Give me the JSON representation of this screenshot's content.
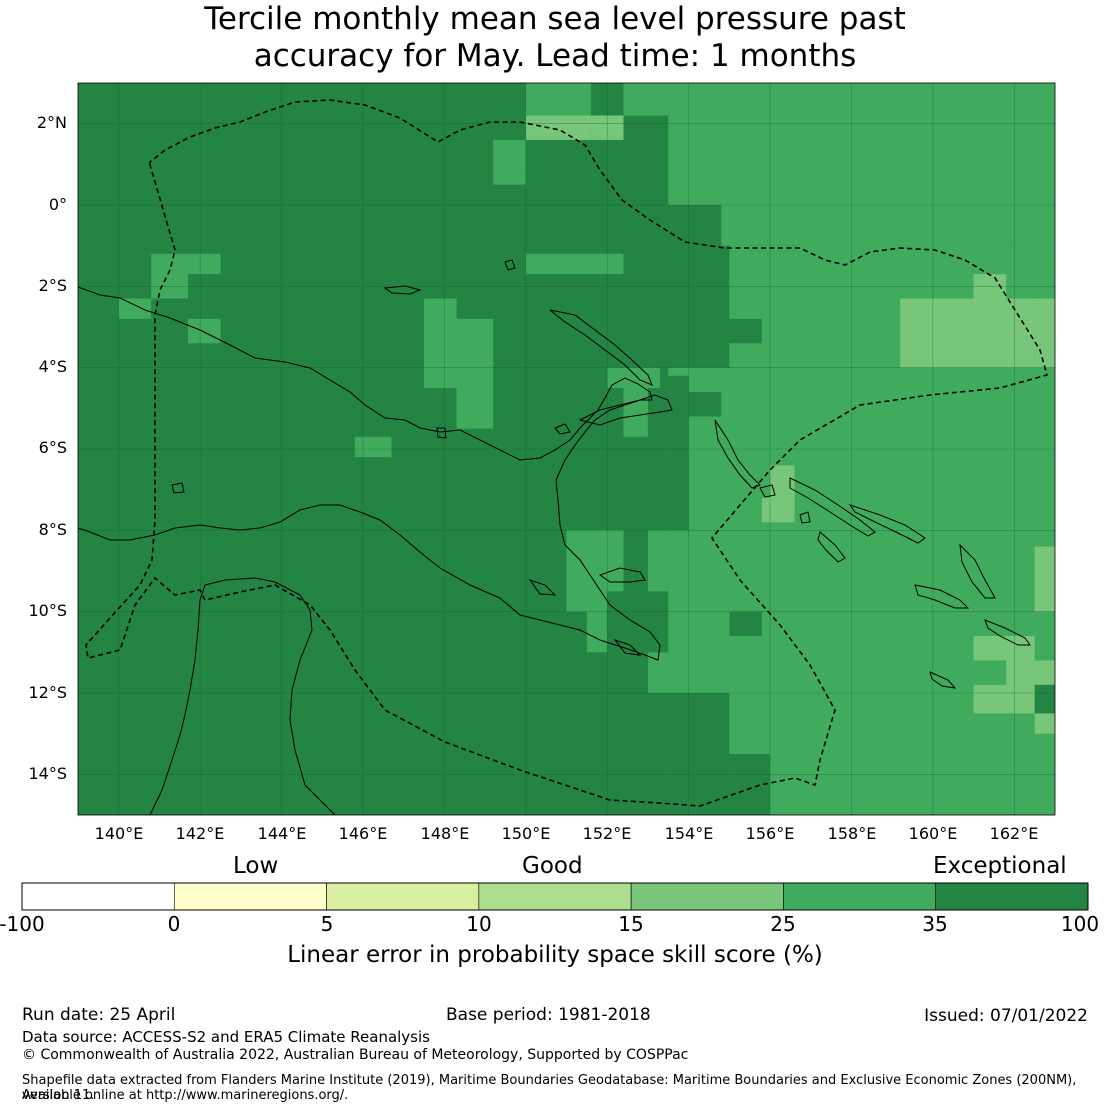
{
  "title": {
    "line1": "Tercile monthly mean sea level pressure past",
    "line2": "accuracy for May. Lead time: 1 months"
  },
  "map": {
    "lat_ticks": [
      "2°N",
      "0°",
      "2°S",
      "4°S",
      "6°S",
      "8°S",
      "10°S",
      "12°S",
      "14°S"
    ],
    "lon_ticks": [
      "140°E",
      "142°E",
      "144°E",
      "146°E",
      "148°E",
      "150°E",
      "152°E",
      "154°E",
      "156°E",
      "158°E",
      "160°E",
      "162°E"
    ],
    "lon_range": [
      139,
      163
    ],
    "lat_range": [
      -15,
      3
    ],
    "background_category": 35,
    "colors": {
      "0": "#ffffcc",
      "5": "#d9f0a3",
      "10": "#addd8e",
      "15": "#78c679",
      "25": "#41ab5d",
      "35": "#238443",
      "-100": "#ffffff"
    }
  },
  "legend": {
    "category_labels": [
      "Low",
      "Good",
      "Exceptional"
    ],
    "tick_labels": [
      "-100",
      "0",
      "5",
      "10",
      "15",
      "25",
      "35",
      "100"
    ],
    "title": "Linear error in probability space skill score (%)"
  },
  "footer": {
    "run_date": "Run date: 25 April",
    "base_period": "Base period: 1981-2018",
    "issued": "Issued: 07/01/2022",
    "data_source": "Data source: ACCESS-S2 and ERA5 Climate Reanalysis",
    "copyright": "© Commonwealth of Australia 2022, Australian Bureau of Meteorology, Supported by COSPPac",
    "shapefile_line1": "Shapefile data extracted from Flanders Marine Institute (2019), Maritime Boundaries Geodatabase: Maritime Boundaries and Exclusive Economic Zones (200NM), version 11.",
    "shapefile_line2": "Available online at http://www.marineregions.org/."
  }
}
